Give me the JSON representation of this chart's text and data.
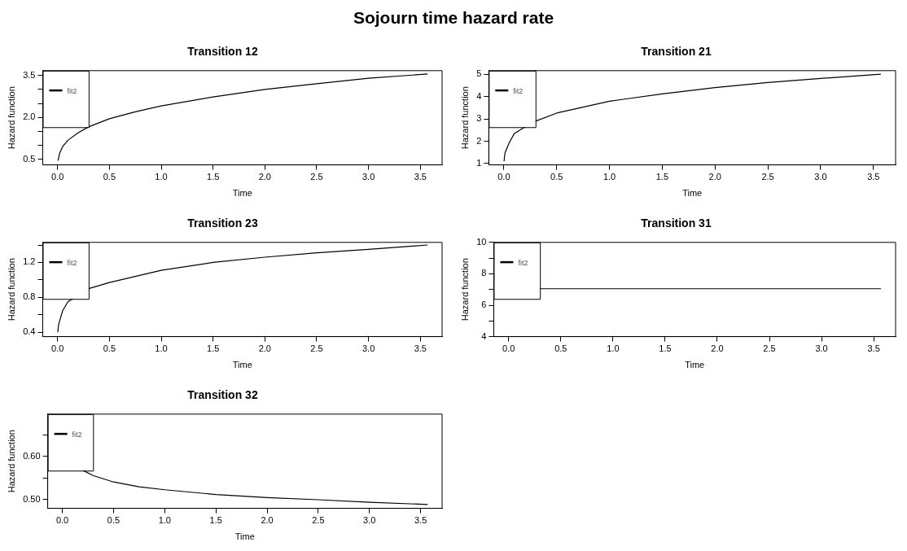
{
  "chart_data": [
    {
      "type": "line",
      "title": "Transition 12",
      "xlabel": "Time",
      "ylabel": "Hazard function",
      "annotations": [
        "Sojourn time hazard rate"
      ],
      "legend": "top left",
      "x": [
        0.005,
        0.02,
        0.05,
        0.1,
        0.2,
        0.3,
        0.5,
        0.75,
        1.0,
        1.5,
        2.0,
        2.5,
        3.0,
        3.57
      ],
      "series": [
        {
          "name": "fit2",
          "color": "#000000",
          "values": [
            0.45,
            0.72,
            0.96,
            1.18,
            1.45,
            1.66,
            1.95,
            2.2,
            2.41,
            2.73,
            3.0,
            3.2,
            3.4,
            3.55
          ]
        }
      ],
      "xlim": [
        -0.143,
        3.71
      ],
      "ylim": [
        0.3,
        3.67
      ],
      "xticks": [
        {
          "value": 0,
          "label": "0.0"
        },
        0.5,
        {
          "value": 1,
          "label": "1.0"
        },
        1.5,
        {
          "value": 2,
          "label": "2.0"
        },
        2.5,
        {
          "value": 3,
          "label": "3.0"
        },
        3.5
      ],
      "yticks": [
        0.5,
        {
          "value": 1,
          "label": null
        },
        {
          "value": 1.5,
          "label": null
        },
        {
          "value": 2,
          "label": "2.0"
        },
        {
          "value": 2.5,
          "label": null
        },
        {
          "value": 3,
          "label": null
        },
        3.5
      ]
    },
    {
      "type": "line",
      "title": "Transition 21",
      "xlabel": "Time",
      "ylabel": "Hazard function",
      "legend": "top left",
      "x": [
        0.002,
        0.01,
        0.05,
        0.1,
        0.2,
        0.3,
        0.5,
        1.0,
        1.5,
        2.0,
        2.5,
        3.0,
        3.57
      ],
      "series": [
        {
          "name": "fit2",
          "color": "#000000",
          "values": [
            1.1,
            1.47,
            1.93,
            2.35,
            2.64,
            2.9,
            3.26,
            3.79,
            4.12,
            4.4,
            4.63,
            4.81,
            5.0
          ]
        }
      ],
      "xlim": [
        -0.143,
        3.71
      ],
      "ylim": [
        0.94,
        5.16
      ],
      "xticks": [
        {
          "value": 0,
          "label": "0.0"
        },
        0.5,
        {
          "value": 1,
          "label": "1.0"
        },
        1.5,
        {
          "value": 2,
          "label": "2.0"
        },
        2.5,
        {
          "value": 3,
          "label": "3.0"
        },
        3.5
      ],
      "yticks": [
        1,
        2,
        3,
        4,
        5
      ]
    },
    {
      "type": "line",
      "title": "Transition 23",
      "xlabel": "Time",
      "ylabel": "Hazard function",
      "legend": "top left",
      "x": [
        0.002,
        0.01,
        0.05,
        0.1,
        0.3,
        0.5,
        1.0,
        1.5,
        2.0,
        2.5,
        3.0,
        3.57
      ],
      "series": [
        {
          "name": "fit2",
          "color": "#000000",
          "values": [
            0.4,
            0.49,
            0.65,
            0.75,
            0.9,
            0.97,
            1.11,
            1.2,
            1.26,
            1.31,
            1.35,
            1.4
          ]
        }
      ],
      "xlim": [
        -0.143,
        3.71
      ],
      "ylim": [
        0.35,
        1.43
      ],
      "xticks": [
        {
          "value": 0,
          "label": "0.0"
        },
        0.5,
        {
          "value": 1,
          "label": "1.0"
        },
        1.5,
        {
          "value": 2,
          "label": "2.0"
        },
        2.5,
        {
          "value": 3,
          "label": "3.0"
        },
        3.5
      ],
      "yticks": [
        0.4,
        {
          "value": 0.6,
          "label": null
        },
        0.8,
        {
          "value": 1,
          "label": null
        },
        1.2,
        {
          "value": 1.4,
          "label": null
        }
      ]
    },
    {
      "type": "line",
      "title": "Transition 31",
      "xlabel": "Time",
      "ylabel": "Hazard function",
      "legend": "top left",
      "x": [
        0.3,
        3.57
      ],
      "series": [
        {
          "name": "fit2",
          "color": "#000000",
          "values": [
            7.05,
            7.05
          ]
        }
      ],
      "xlim": [
        -0.143,
        3.71
      ],
      "ylim": [
        4,
        10
      ],
      "xticks": [
        {
          "value": 0,
          "label": "0.0"
        },
        0.5,
        {
          "value": 1,
          "label": "1.0"
        },
        1.5,
        {
          "value": 2,
          "label": "2.0"
        },
        2.5,
        {
          "value": 3,
          "label": "3.0"
        },
        3.5
      ],
      "yticks": [
        4,
        {
          "value": 5,
          "label": null
        },
        6,
        {
          "value": 7,
          "label": null
        },
        8,
        {
          "value": 9,
          "label": null
        },
        10
      ]
    },
    {
      "type": "line",
      "title": "Transition 32",
      "xlabel": "Time",
      "ylabel": "Hazard function",
      "legend": "top left",
      "x": [
        0.2,
        0.3,
        0.5,
        0.75,
        1.0,
        1.5,
        2.0,
        2.5,
        3.0,
        3.57
      ],
      "series": [
        {
          "name": "fit2",
          "color": "#000000",
          "values": [
            0.568,
            0.556,
            0.541,
            0.53,
            0.523,
            0.512,
            0.505,
            0.5,
            0.494,
            0.489
          ]
        }
      ],
      "xlim": [
        -0.143,
        3.71
      ],
      "ylim": [
        0.48,
        0.698
      ],
      "xticks": [
        {
          "value": 0,
          "label": "0.0"
        },
        0.5,
        {
          "value": 1,
          "label": "1.0"
        },
        1.5,
        {
          "value": 2,
          "label": "2.0"
        },
        2.5,
        {
          "value": 3,
          "label": "3.0"
        },
        3.5
      ],
      "yticks": [
        {
          "value": 0.5,
          "label": "0.50"
        },
        {
          "value": 0.55,
          "label": null
        },
        {
          "value": 0.6,
          "label": "0.60"
        },
        {
          "value": 0.65,
          "label": null
        }
      ]
    }
  ]
}
